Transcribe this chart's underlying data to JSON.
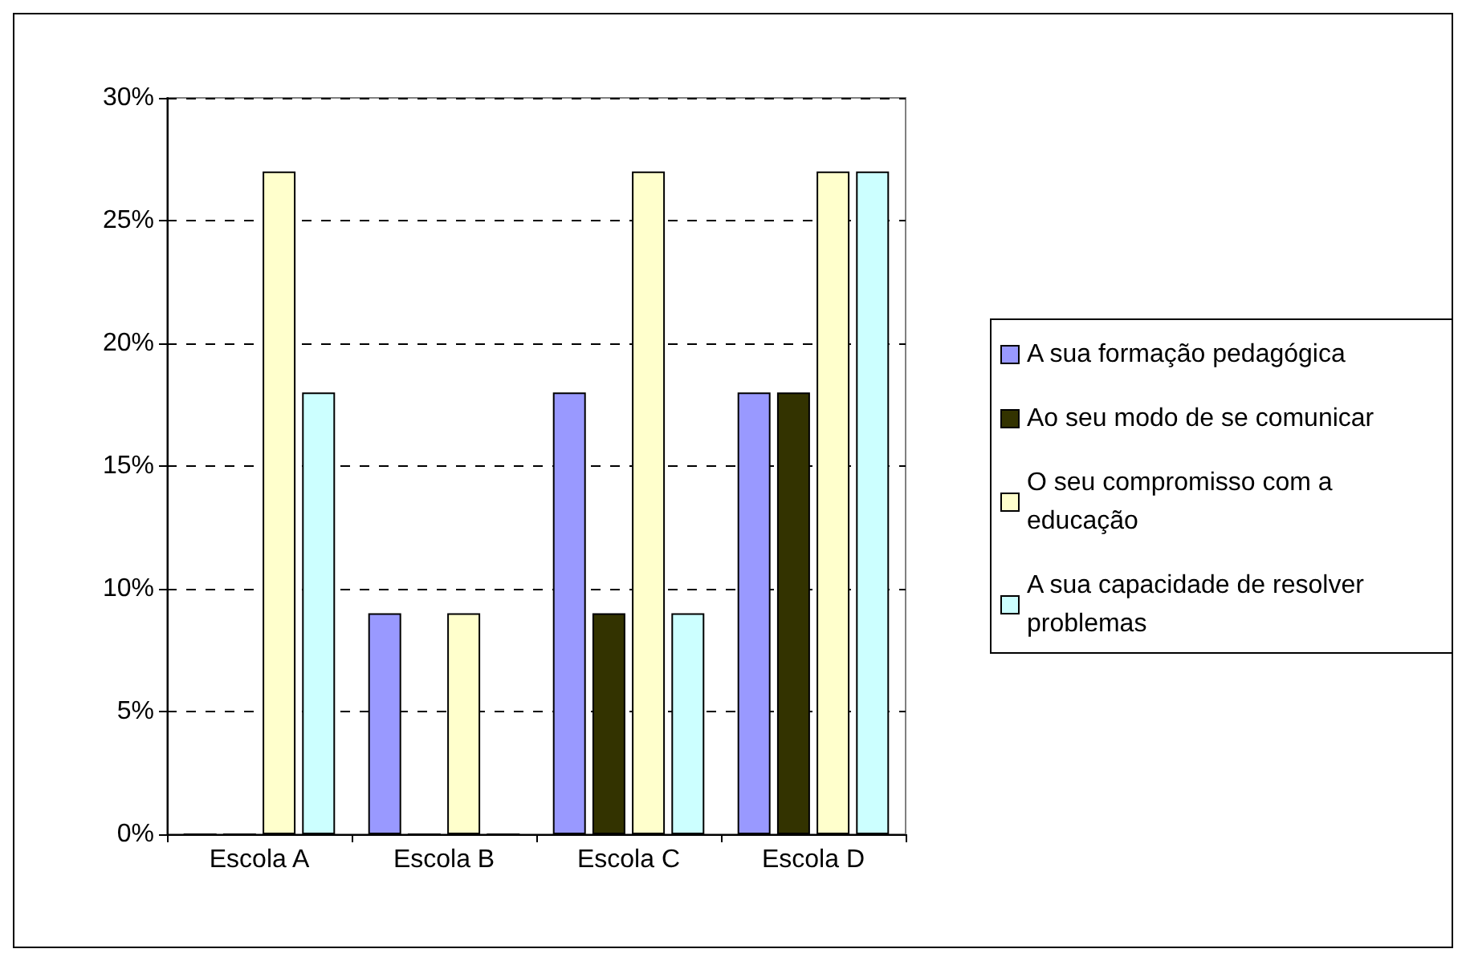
{
  "chart_data": {
    "type": "bar",
    "categories": [
      "Escola A",
      "Escola B",
      "Escola C",
      "Escola D"
    ],
    "series": [
      {
        "name": "A sua formação pedagógica",
        "color": "#9999ff",
        "values": [
          0,
          9,
          18,
          18
        ]
      },
      {
        "name": "Ao seu modo de se comunicar",
        "color": "#333300",
        "values": [
          0,
          0,
          9,
          18
        ]
      },
      {
        "name": "O seu compromisso com a educação",
        "color": "#ffffcc",
        "values": [
          27,
          9,
          27,
          27
        ]
      },
      {
        "name": "A sua capacidade de resolver problemas",
        "color": "#ccffff",
        "values": [
          18,
          0,
          9,
          27
        ]
      }
    ],
    "ylim": [
      0,
      30
    ],
    "yticks": [
      {
        "value": 0,
        "label": "0%"
      },
      {
        "value": 5,
        "label": "5%"
      },
      {
        "value": 10,
        "label": "10%"
      },
      {
        "value": 15,
        "label": "15%"
      },
      {
        "value": 20,
        "label": "20%"
      },
      {
        "value": 25,
        "label": "25%"
      },
      {
        "value": 30,
        "label": "30%"
      }
    ],
    "grid": "y",
    "legend": "right"
  }
}
